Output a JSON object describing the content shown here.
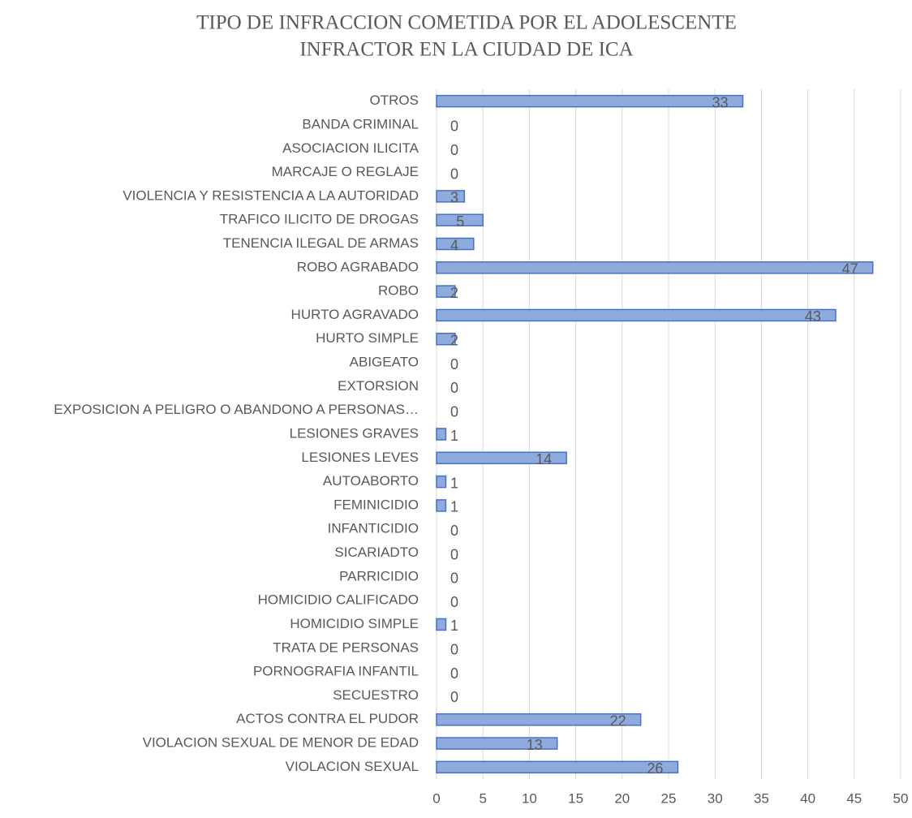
{
  "chart_data": {
    "type": "barh",
    "title": [
      "TIPO DE INFRACCION COMETIDA POR EL ADOLESCENTE",
      "INFRACTOR EN LA CIUDAD DE ICA"
    ],
    "categories": [
      "VIOLACION SEXUAL",
      "VIOLACION SEXUAL DE MENOR DE EDAD",
      "ACTOS CONTRA EL PUDOR",
      "SECUESTRO",
      "PORNOGRAFIA INFANTIL",
      "TRATA DE PERSONAS",
      "HOMICIDIO SIMPLE",
      "HOMICIDIO CALIFICADO",
      "PARRICIDIO",
      "SICARIADTO",
      "INFANTICIDIO",
      "FEMINICIDIO",
      "AUTOABORTO",
      "LESIONES LEVES",
      "LESIONES GRAVES",
      "EXPOSICION A PELIGRO O ABANDONO A PERSONAS…",
      "EXTORSION",
      "ABIGEATO",
      "HURTO SIMPLE",
      "HURTO AGRAVADO",
      "ROBO",
      "ROBO AGRABADO",
      "TENENCIA ILEGAL DE ARMAS",
      "TRAFICO ILICITO DE DROGAS",
      "VIOLENCIA Y RESISTENCIA A LA AUTORIDAD",
      "MARCAJE O REGLAJE",
      "ASOCIACION ILICITA",
      "BANDA CRIMINAL",
      "OTROS"
    ],
    "values": [
      26,
      13,
      22,
      0,
      0,
      0,
      1,
      0,
      0,
      0,
      0,
      1,
      1,
      14,
      1,
      0,
      0,
      0,
      2,
      43,
      2,
      47,
      4,
      5,
      3,
      0,
      0,
      0,
      33
    ],
    "color": "#8faadc",
    "edgecolor": "#4472c4",
    "xlim": [
      0,
      50
    ],
    "xticks": [
      0,
      5,
      10,
      15,
      20,
      25,
      30,
      35,
      40,
      45,
      50
    ],
    "grid": true
  }
}
